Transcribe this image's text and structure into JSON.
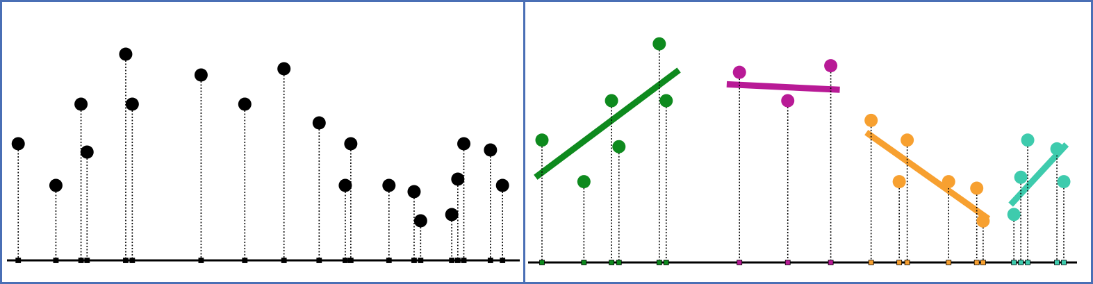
{
  "colors": {
    "border": "#4a6fb5",
    "axis": "#000000",
    "unclustered": "#000000",
    "cluster_1": "#0e8a1e",
    "cluster_2": "#b81a96",
    "cluster_3": "#f7a030",
    "cluster_4": "#3ecbad"
  },
  "chart_data": [
    {
      "type": "scatter",
      "panel": "left",
      "title": "",
      "xlabel": "",
      "ylabel": "",
      "grid": false,
      "legend": "none",
      "xlim": [
        0,
        100
      ],
      "ylim": [
        0,
        100
      ],
      "series": [
        {
          "color": "#000000",
          "points": [
            {
              "x": 1.0,
              "y": 56
            },
            {
              "x": 8.5,
              "y": 36
            },
            {
              "x": 13.5,
              "y": 75
            },
            {
              "x": 14.7,
              "y": 52
            },
            {
              "x": 22.4,
              "y": 99
            },
            {
              "x": 23.7,
              "y": 75
            },
            {
              "x": 37.4,
              "y": 89
            },
            {
              "x": 46.1,
              "y": 75
            },
            {
              "x": 53.9,
              "y": 92
            },
            {
              "x": 60.9,
              "y": 66
            },
            {
              "x": 66.1,
              "y": 36
            },
            {
              "x": 67.2,
              "y": 56
            },
            {
              "x": 74.8,
              "y": 36
            },
            {
              "x": 79.8,
              "y": 33
            },
            {
              "x": 81.1,
              "y": 19
            },
            {
              "x": 87.3,
              "y": 22
            },
            {
              "x": 88.5,
              "y": 39
            },
            {
              "x": 89.7,
              "y": 56
            },
            {
              "x": 95.0,
              "y": 53
            },
            {
              "x": 97.4,
              "y": 36
            }
          ]
        }
      ]
    },
    {
      "type": "scatter",
      "panel": "right",
      "title": "",
      "xlabel": "",
      "ylabel": "",
      "grid": false,
      "legend": "none",
      "xlim": [
        0,
        100
      ],
      "ylim": [
        0,
        100
      ],
      "series": [
        {
          "color": "#0e8a1e",
          "points": [
            {
              "x": 1.7,
              "y": 55
            },
            {
              "x": 9.6,
              "y": 36
            },
            {
              "x": 14.8,
              "y": 73
            },
            {
              "x": 16.2,
              "y": 52
            },
            {
              "x": 23.8,
              "y": 99
            },
            {
              "x": 25.1,
              "y": 73
            }
          ],
          "trend": [
            [
              0.5,
              38
            ],
            [
              27.5,
              87
            ]
          ]
        },
        {
          "color": "#b81a96",
          "points": [
            {
              "x": 38.9,
              "y": 86
            },
            {
              "x": 48.0,
              "y": 73
            },
            {
              "x": 56.1,
              "y": 89
            }
          ],
          "trend": [
            [
              36.5,
              80.5
            ],
            [
              57.8,
              78
            ]
          ]
        },
        {
          "color": "#f7a030",
          "points": [
            {
              "x": 63.7,
              "y": 64
            },
            {
              "x": 69.0,
              "y": 36
            },
            {
              "x": 70.5,
              "y": 55
            },
            {
              "x": 78.3,
              "y": 36
            },
            {
              "x": 83.6,
              "y": 33
            },
            {
              "x": 84.8,
              "y": 18
            }
          ],
          "trend": [
            [
              62.8,
              58.5
            ],
            [
              85.8,
              19
            ]
          ]
        },
        {
          "color": "#3ecbad",
          "points": [
            {
              "x": 90.6,
              "y": 21
            },
            {
              "x": 91.9,
              "y": 38
            },
            {
              "x": 93.2,
              "y": 55
            },
            {
              "x": 98.7,
              "y": 51
            },
            {
              "x": 100.0,
              "y": 36
            }
          ],
          "trend": [
            [
              90.0,
              25.5
            ],
            [
              100.5,
              53
            ]
          ]
        }
      ]
    }
  ]
}
